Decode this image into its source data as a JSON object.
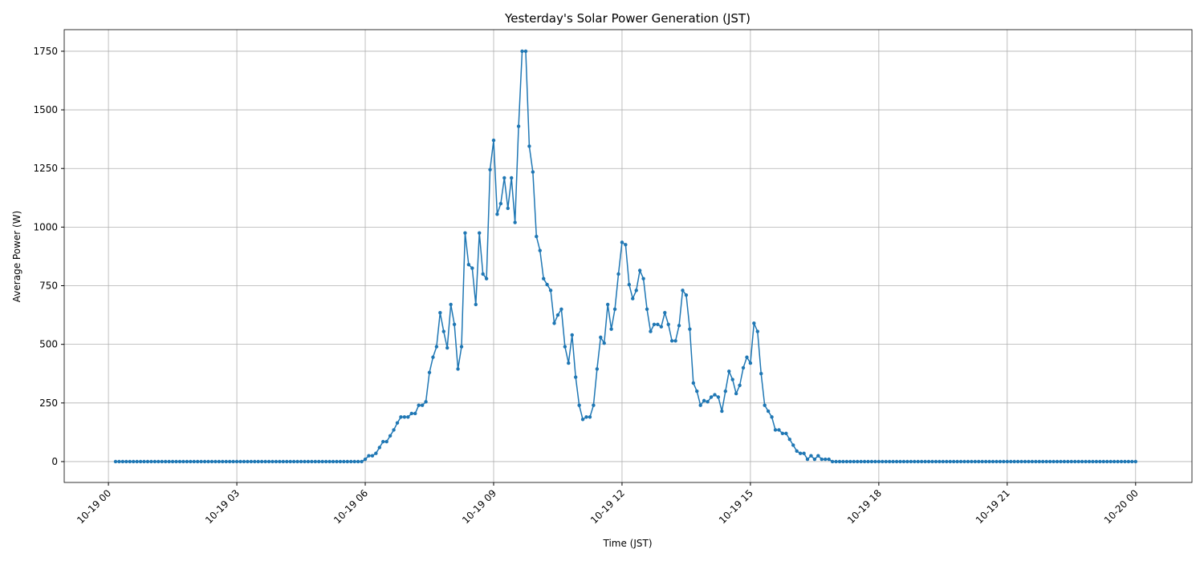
{
  "chart_data": {
    "type": "line",
    "title": "Yesterday's Solar Power Generation (JST)",
    "x_label": "Time (JST)",
    "y_label": "Average Power (W)",
    "grid": true,
    "color": "#1f77b4",
    "xlim": [
      -62,
      1519
    ],
    "ylim": [
      -89,
      1842
    ],
    "xticks": [
      {
        "value": 0,
        "label": "10-19 00"
      },
      {
        "value": 180,
        "label": "10-19 03"
      },
      {
        "value": 360,
        "label": "10-19 06"
      },
      {
        "value": 540,
        "label": "10-19 09"
      },
      {
        "value": 720,
        "label": "10-19 12"
      },
      {
        "value": 900,
        "label": "10-19 15"
      },
      {
        "value": 1080,
        "label": "10-19 18"
      },
      {
        "value": 1260,
        "label": "10-19 21"
      },
      {
        "value": 1440,
        "label": "10-20 00"
      }
    ],
    "yticks": [
      0,
      250,
      500,
      750,
      1000,
      1250,
      1500,
      1750
    ],
    "x": [
      10,
      15,
      20,
      25,
      30,
      35,
      40,
      45,
      50,
      55,
      60,
      65,
      70,
      75,
      80,
      85,
      90,
      95,
      100,
      105,
      110,
      115,
      120,
      125,
      130,
      135,
      140,
      145,
      150,
      155,
      160,
      165,
      170,
      175,
      180,
      185,
      190,
      195,
      200,
      205,
      210,
      215,
      220,
      225,
      230,
      235,
      240,
      245,
      250,
      255,
      260,
      265,
      270,
      275,
      280,
      285,
      290,
      295,
      300,
      305,
      310,
      315,
      320,
      325,
      330,
      335,
      340,
      345,
      350,
      355,
      360,
      365,
      370,
      375,
      380,
      385,
      390,
      395,
      400,
      405,
      410,
      415,
      420,
      425,
      430,
      435,
      440,
      445,
      450,
      455,
      460,
      465,
      470,
      475,
      480,
      485,
      490,
      495,
      500,
      505,
      510,
      515,
      520,
      525,
      530,
      535,
      540,
      545,
      550,
      555,
      560,
      565,
      570,
      575,
      580,
      585,
      590,
      595,
      600,
      605,
      610,
      615,
      620,
      625,
      630,
      635,
      640,
      645,
      650,
      655,
      660,
      665,
      670,
      675,
      680,
      685,
      690,
      695,
      700,
      705,
      710,
      715,
      720,
      725,
      730,
      735,
      740,
      745,
      750,
      755,
      760,
      765,
      770,
      775,
      780,
      785,
      790,
      795,
      800,
      805,
      810,
      815,
      820,
      825,
      830,
      835,
      840,
      845,
      850,
      855,
      860,
      865,
      870,
      875,
      880,
      885,
      890,
      895,
      900,
      905,
      910,
      915,
      920,
      925,
      930,
      935,
      940,
      945,
      950,
      955,
      960,
      965,
      970,
      975,
      980,
      985,
      990,
      995,
      1000,
      1005,
      1010,
      1015,
      1020,
      1025,
      1030,
      1035,
      1040,
      1045,
      1050,
      1055,
      1060,
      1065,
      1070,
      1075,
      1080,
      1085,
      1090,
      1095,
      1100,
      1105,
      1110,
      1115,
      1120,
      1125,
      1130,
      1135,
      1140,
      1145,
      1150,
      1155,
      1160,
      1165,
      1170,
      1175,
      1180,
      1185,
      1190,
      1195,
      1200,
      1205,
      1210,
      1215,
      1220,
      1225,
      1230,
      1235,
      1240,
      1245,
      1250,
      1255,
      1260,
      1265,
      1270,
      1275,
      1280,
      1285,
      1290,
      1295,
      1300,
      1305,
      1310,
      1315,
      1320,
      1325,
      1330,
      1335,
      1340,
      1345,
      1350,
      1355,
      1360,
      1365,
      1370,
      1375,
      1380,
      1385,
      1390,
      1395,
      1400,
      1405,
      1410,
      1415,
      1420,
      1425,
      1430,
      1435,
      1440
    ],
    "values": [
      0,
      0,
      0,
      0,
      0,
      0,
      0,
      0,
      0,
      0,
      0,
      0,
      0,
      0,
      0,
      0,
      0,
      0,
      0,
      0,
      0,
      0,
      0,
      0,
      0,
      0,
      0,
      0,
      0,
      0,
      0,
      0,
      0,
      0,
      0,
      0,
      0,
      0,
      0,
      0,
      0,
      0,
      0,
      0,
      0,
      0,
      0,
      0,
      0,
      0,
      0,
      0,
      0,
      0,
      0,
      0,
      0,
      0,
      0,
      0,
      0,
      0,
      0,
      0,
      0,
      0,
      0,
      0,
      0,
      0,
      10,
      25,
      25,
      35,
      60,
      85,
      85,
      110,
      135,
      165,
      190,
      190,
      190,
      205,
      205,
      240,
      240,
      255,
      380,
      445,
      490,
      635,
      555,
      485,
      670,
      585,
      395,
      490,
      975,
      840,
      825,
      670,
      975,
      800,
      780,
      1245,
      1370,
      1055,
      1100,
      1210,
      1080,
      1210,
      1020,
      1430,
      1750,
      1750,
      1345,
      1235,
      960,
      900,
      780,
      755,
      730,
      590,
      625,
      650,
      490,
      420,
      540,
      360,
      240,
      180,
      190,
      190,
      240,
      395,
      530,
      505,
      670,
      565,
      650,
      800,
      935,
      925,
      755,
      695,
      730,
      815,
      780,
      650,
      555,
      585,
      585,
      575,
      635,
      585,
      515,
      515,
      580,
      730,
      710,
      565,
      335,
      300,
      240,
      260,
      255,
      275,
      285,
      275,
      215,
      300,
      385,
      350,
      290,
      325,
      400,
      445,
      420,
      590,
      555,
      375,
      240,
      215,
      190,
      135,
      135,
      120,
      120,
      95,
      70,
      45,
      35,
      35,
      10,
      25,
      10,
      25,
      10,
      10,
      10,
      0,
      0,
      0,
      0,
      0,
      0,
      0,
      0,
      0,
      0,
      0,
      0,
      0,
      0,
      0,
      0,
      0,
      0,
      0,
      0,
      0,
      0,
      0,
      0,
      0,
      0,
      0,
      0,
      0,
      0,
      0,
      0,
      0,
      0,
      0,
      0,
      0,
      0,
      0,
      0,
      0,
      0,
      0,
      0,
      0,
      0,
      0,
      0,
      0,
      0,
      0,
      0,
      0,
      0,
      0,
      0,
      0,
      0,
      0,
      0,
      0,
      0,
      0,
      0,
      0,
      0,
      0,
      0,
      0,
      0,
      0,
      0,
      0,
      0,
      0,
      0,
      0,
      0,
      0,
      0,
      0,
      0,
      0,
      0,
      0,
      0
    ]
  }
}
